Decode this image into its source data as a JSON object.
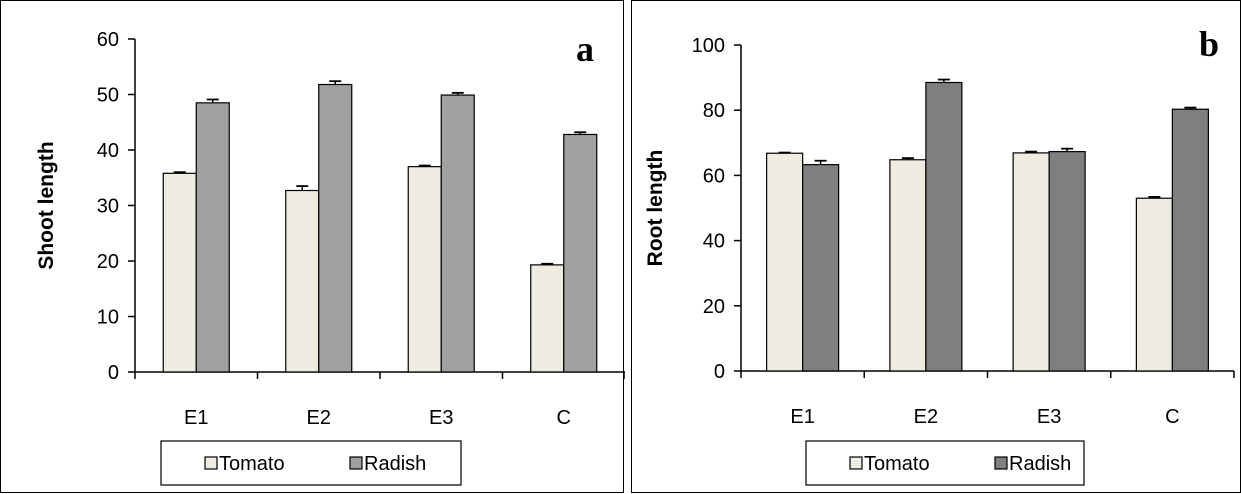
{
  "chart_data": [
    {
      "type": "bar",
      "panel_label": "a",
      "categories": [
        "E1",
        "E2",
        "E3",
        "C"
      ],
      "series": [
        {
          "name": "Tomato",
          "values": [
            35.8,
            32.7,
            37.0,
            19.3
          ],
          "errors": [
            0.2,
            0.8,
            0.2,
            0.2
          ],
          "color": "#eeece1"
        },
        {
          "name": "Radish",
          "values": [
            48.5,
            51.8,
            49.9,
            42.8
          ],
          "errors": [
            0.6,
            0.6,
            0.4,
            0.4
          ],
          "color": "#a0a0a0"
        }
      ],
      "ylabel": "Shoot length",
      "ylim": [
        0,
        60
      ],
      "yticks": [
        0,
        10,
        20,
        30,
        40,
        50,
        60
      ],
      "legend_position": "bottom",
      "grid": false
    },
    {
      "type": "bar",
      "panel_label": "b",
      "categories": [
        "E1",
        "E2",
        "E3",
        "C"
      ],
      "series": [
        {
          "name": "Tomato",
          "values": [
            66.8,
            64.8,
            66.9,
            53.0
          ],
          "errors": [
            0.2,
            0.5,
            0.4,
            0.4
          ],
          "color": "#eeece1"
        },
        {
          "name": "Radish",
          "values": [
            63.3,
            88.5,
            67.3,
            80.3
          ],
          "errors": [
            1.2,
            0.9,
            0.9,
            0.5
          ],
          "color": "#7f7f7f"
        }
      ],
      "ylabel": "Root length",
      "ylim": [
        0,
        100
      ],
      "yticks": [
        0,
        20,
        40,
        60,
        80,
        100
      ],
      "legend_position": "bottom",
      "grid": false
    }
  ]
}
